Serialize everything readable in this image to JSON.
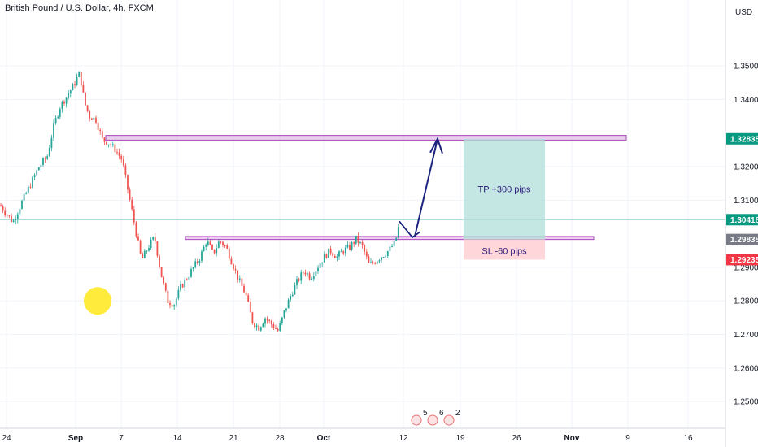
{
  "header": {
    "title": "British Pound / U.S. Dollar, 4h, FXCM",
    "currency": "USD"
  },
  "colors": {
    "up": "#26a69a",
    "down": "#ef5350",
    "zone": "#e1bee7",
    "zone_border": "#ab47bc",
    "tp_fill": "#b2dfdb",
    "sl_fill": "#ffcdd2",
    "arrow": "#1a237e",
    "marker": "#ffeb3b"
  },
  "chart_data": {
    "type": "candlestick",
    "symbol": "GBPUSD",
    "ylim": [
      1.243,
      1.359
    ],
    "y_ticks": [
      "1.35000",
      "1.34000",
      "1.32000",
      "1.31000",
      "1.29000",
      "1.28000",
      "1.27000",
      "1.26000",
      "1.25000"
    ],
    "x_ticks": [
      "24",
      "Sep",
      "7",
      "14",
      "21",
      "28",
      "Oct",
      "12",
      "19",
      "26",
      "Nov",
      "9",
      "16"
    ],
    "path": [
      [
        0,
        1.3085
      ],
      [
        8,
        1.306
      ],
      [
        16,
        1.3035
      ],
      [
        26,
        1.309
      ],
      [
        38,
        1.315
      ],
      [
        48,
        1.32
      ],
      [
        58,
        1.323
      ],
      [
        66,
        1.332
      ],
      [
        74,
        1.338
      ],
      [
        82,
        1.341
      ],
      [
        90,
        1.344
      ],
      [
        98,
        1.348
      ],
      [
        104,
        1.339
      ],
      [
        110,
        1.335
      ],
      [
        118,
        1.334
      ],
      [
        126,
        1.328
      ],
      [
        134,
        1.327
      ],
      [
        142,
        1.325
      ],
      [
        150,
        1.322
      ],
      [
        158,
        1.312
      ],
      [
        166,
        1.302
      ],
      [
        174,
        1.292
      ],
      [
        182,
        1.296
      ],
      [
        190,
        1.299
      ],
      [
        198,
        1.288
      ],
      [
        206,
        1.28
      ],
      [
        214,
        1.279
      ],
      [
        222,
        1.284
      ],
      [
        230,
        1.287
      ],
      [
        238,
        1.29
      ],
      [
        246,
        1.293
      ],
      [
        254,
        1.298
      ],
      [
        262,
        1.294
      ],
      [
        270,
        1.298
      ],
      [
        278,
        1.296
      ],
      [
        286,
        1.291
      ],
      [
        294,
        1.286
      ],
      [
        302,
        1.282
      ],
      [
        310,
        1.274
      ],
      [
        318,
        1.272
      ],
      [
        326,
        1.275
      ],
      [
        334,
        1.273
      ],
      [
        342,
        1.271
      ],
      [
        350,
        1.277
      ],
      [
        358,
        1.282
      ],
      [
        366,
        1.286
      ],
      [
        374,
        1.289
      ],
      [
        382,
        1.287
      ],
      [
        390,
        1.29
      ],
      [
        398,
        1.293
      ],
      [
        406,
        1.295
      ],
      [
        414,
        1.293
      ],
      [
        422,
        1.295
      ],
      [
        430,
        1.296
      ],
      [
        438,
        1.2985
      ],
      [
        446,
        1.296
      ],
      [
        454,
        1.2905
      ],
      [
        462,
        1.292
      ],
      [
        470,
        1.2935
      ],
      [
        478,
        1.295
      ],
      [
        486,
        1.2975
      ],
      [
        492,
        1.3042
      ]
    ],
    "zones": [
      {
        "x0": 130,
        "x1": 770,
        "y_low": 1.3279,
        "y_high": 1.3293
      },
      {
        "x0": 228,
        "x1": 730,
        "y_low": 1.2983,
        "y_high": 1.2992
      }
    ],
    "trade": {
      "x0": 570,
      "x1": 670,
      "entry": 1.2983,
      "tp": 1.3283,
      "sl": 1.2923
    },
    "arrow": {
      "from_x": 510,
      "to_x": 538,
      "from_y": 1.2992,
      "to_y": 1.3283
    },
    "check": {
      "x_left": 491,
      "x_mid": 507,
      "x_right": 517
    },
    "marker": {
      "x": 120,
      "y": 1.28
    },
    "current_price": 1.3042,
    "price_labels": [
      {
        "text": "1.32835",
        "price": 1.3283,
        "color": "#089981"
      },
      {
        "text": "1.30418",
        "price": 1.3042,
        "color": "#089981"
      },
      {
        "text": "1.29835",
        "price": 1.2983,
        "color": "#787b86"
      },
      {
        "text": "1.29235",
        "price": 1.2923,
        "color": "#f23645"
      }
    ],
    "annotations": [
      {
        "text": "TP  +300 pips",
        "kind": "tp"
      },
      {
        "text": "SL  -60 pips",
        "kind": "sl"
      }
    ],
    "event_badges": [
      "5",
      "6",
      "2"
    ]
  }
}
